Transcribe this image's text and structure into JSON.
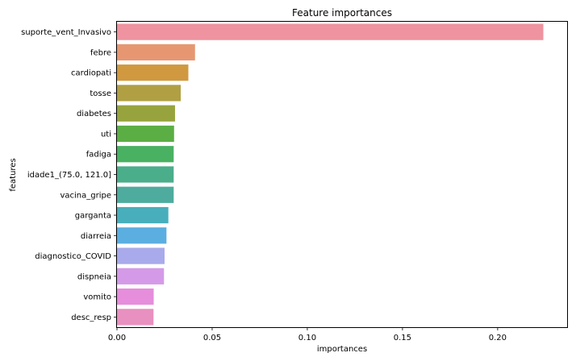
{
  "chart_data": {
    "type": "bar",
    "orientation": "horizontal",
    "title": "Feature importances",
    "xlabel": "importances",
    "ylabel": "features",
    "xlim": [
      0,
      0.2365
    ],
    "xticks": [
      0.0,
      0.05,
      0.1,
      0.15,
      0.2
    ],
    "xtick_labels": [
      "0.00",
      "0.05",
      "0.10",
      "0.15",
      "0.20"
    ],
    "grid": false,
    "legend": "none",
    "categories": [
      "suporte_vent_Invasivo",
      "febre",
      "cardiopati",
      "tosse",
      "diabetes",
      "uti",
      "fadiga",
      "idade1_(75.0, 121.0]",
      "vacina_gripe",
      "garganta",
      "diarreia",
      "diagnostico_COVID",
      "dispneia",
      "vomito",
      "desc_resp"
    ],
    "values": [
      0.224,
      0.041,
      0.0375,
      0.0335,
      0.0305,
      0.03,
      0.0298,
      0.0298,
      0.0298,
      0.027,
      0.026,
      0.025,
      0.0247,
      0.0193,
      0.0192
    ],
    "colors": [
      "#ee939f",
      "#e69771",
      "#d0993f",
      "#b0a043",
      "#97a43e",
      "#5bae44",
      "#49b162",
      "#4bae8b",
      "#4dac9d",
      "#48aebb",
      "#5baee0",
      "#a8aaeb",
      "#d49ae8",
      "#e68ddc",
      "#e890bf"
    ]
  }
}
